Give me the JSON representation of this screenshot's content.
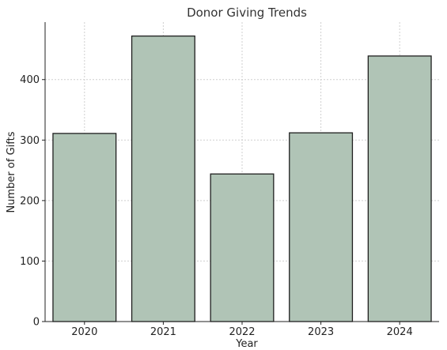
{
  "chart_data": {
    "type": "bar",
    "title": "Donor Giving Trends",
    "xlabel": "Year",
    "ylabel": "Number of Gifts",
    "categories": [
      "2020",
      "2021",
      "2022",
      "2023",
      "2024"
    ],
    "values": [
      311,
      472,
      244,
      312,
      439
    ],
    "ylim": [
      0,
      495
    ],
    "yticks": [
      0,
      100,
      200,
      300,
      400
    ],
    "grid": true,
    "bar_color": "#b0c4b6",
    "bar_edge_color": "#1f1f1f"
  }
}
